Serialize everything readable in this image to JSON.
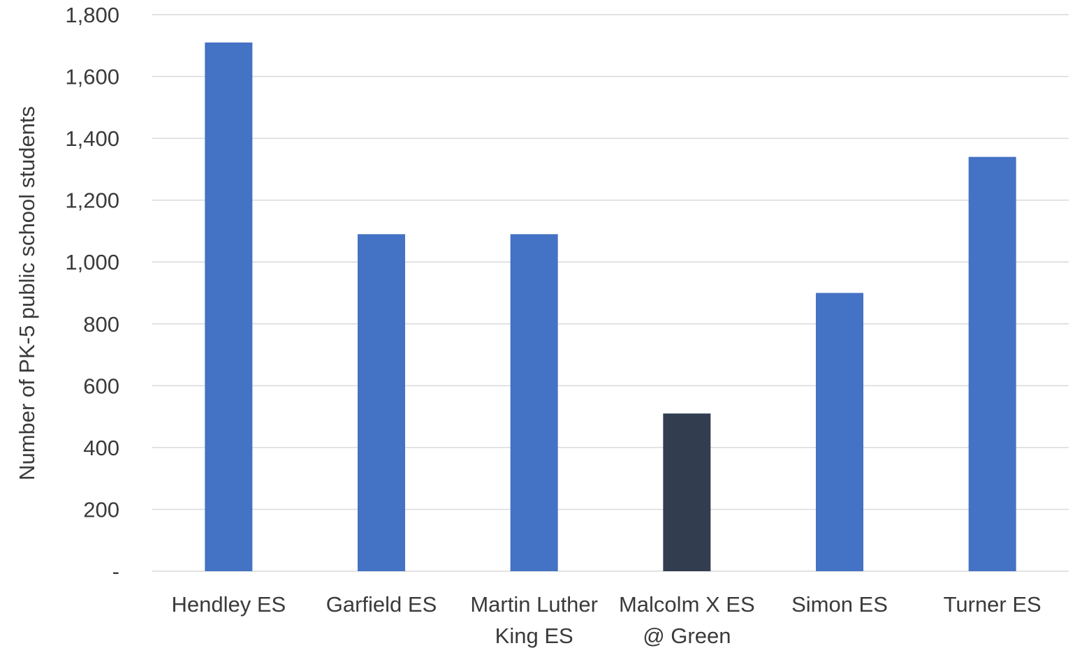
{
  "chart_data": {
    "type": "bar",
    "title": "",
    "xlabel": "",
    "ylabel": "Number of PK-5 public school students",
    "ylim": [
      0,
      1800
    ],
    "yticks": [
      {
        "value": 0,
        "label": "-"
      },
      {
        "value": 200,
        "label": "200"
      },
      {
        "value": 400,
        "label": "400"
      },
      {
        "value": 600,
        "label": "600"
      },
      {
        "value": 800,
        "label": "800"
      },
      {
        "value": 1000,
        "label": "1,000"
      },
      {
        "value": 1200,
        "label": "1,200"
      },
      {
        "value": 1400,
        "label": "1,400"
      },
      {
        "value": 1600,
        "label": "1,600"
      },
      {
        "value": 1800,
        "label": "1,800"
      }
    ],
    "grid": true,
    "legend": "none",
    "categories": [
      [
        "Hendley ES"
      ],
      [
        "Garfield ES"
      ],
      [
        "Martin Luther",
        "King ES"
      ],
      [
        "Malcolm X ES",
        "@ Green"
      ],
      [
        "Simon ES"
      ],
      [
        "Turner ES"
      ]
    ],
    "values": [
      1710,
      1090,
      1090,
      510,
      900,
      1340
    ],
    "colors": [
      "#4472c4",
      "#4472c4",
      "#4472c4",
      "#323e4f",
      "#4472c4",
      "#4472c4"
    ]
  }
}
